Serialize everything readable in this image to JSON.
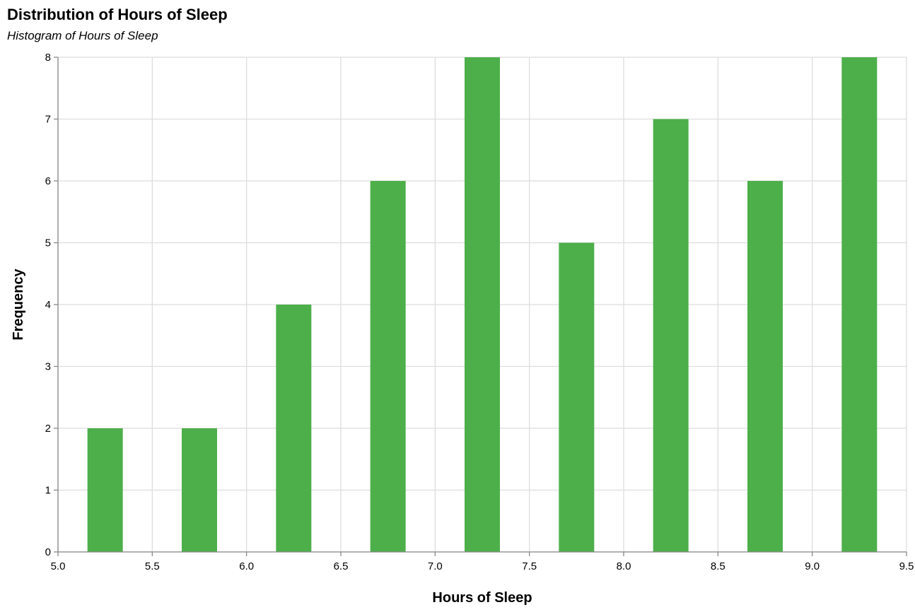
{
  "chart_data": {
    "type": "bar",
    "title": "Distribution of Hours of Sleep",
    "subtitle": "Histogram of Hours of Sleep",
    "xlabel": "Hours of Sleep",
    "ylabel": "Frequency",
    "xlim": [
      5.0,
      9.5
    ],
    "ylim": [
      0,
      8
    ],
    "x_ticks": [
      "5.0",
      "5.5",
      "6.0",
      "6.5",
      "7.0",
      "7.5",
      "8.0",
      "8.5",
      "9.0",
      "9.5"
    ],
    "y_ticks": [
      "0",
      "1",
      "2",
      "3",
      "4",
      "5",
      "6",
      "7",
      "8"
    ],
    "grid": true,
    "bar_color": "#4daf4a",
    "bins": [
      {
        "start": 5.0,
        "end": 5.5,
        "count": 2
      },
      {
        "start": 5.5,
        "end": 6.0,
        "count": 2
      },
      {
        "start": 6.0,
        "end": 6.5,
        "count": 4
      },
      {
        "start": 6.5,
        "end": 7.0,
        "count": 6
      },
      {
        "start": 7.0,
        "end": 7.5,
        "count": 8
      },
      {
        "start": 7.5,
        "end": 8.0,
        "count": 5
      },
      {
        "start": 8.0,
        "end": 8.5,
        "count": 7
      },
      {
        "start": 8.5,
        "end": 9.0,
        "count": 6
      },
      {
        "start": 9.0,
        "end": 9.5,
        "count": 8
      }
    ]
  }
}
